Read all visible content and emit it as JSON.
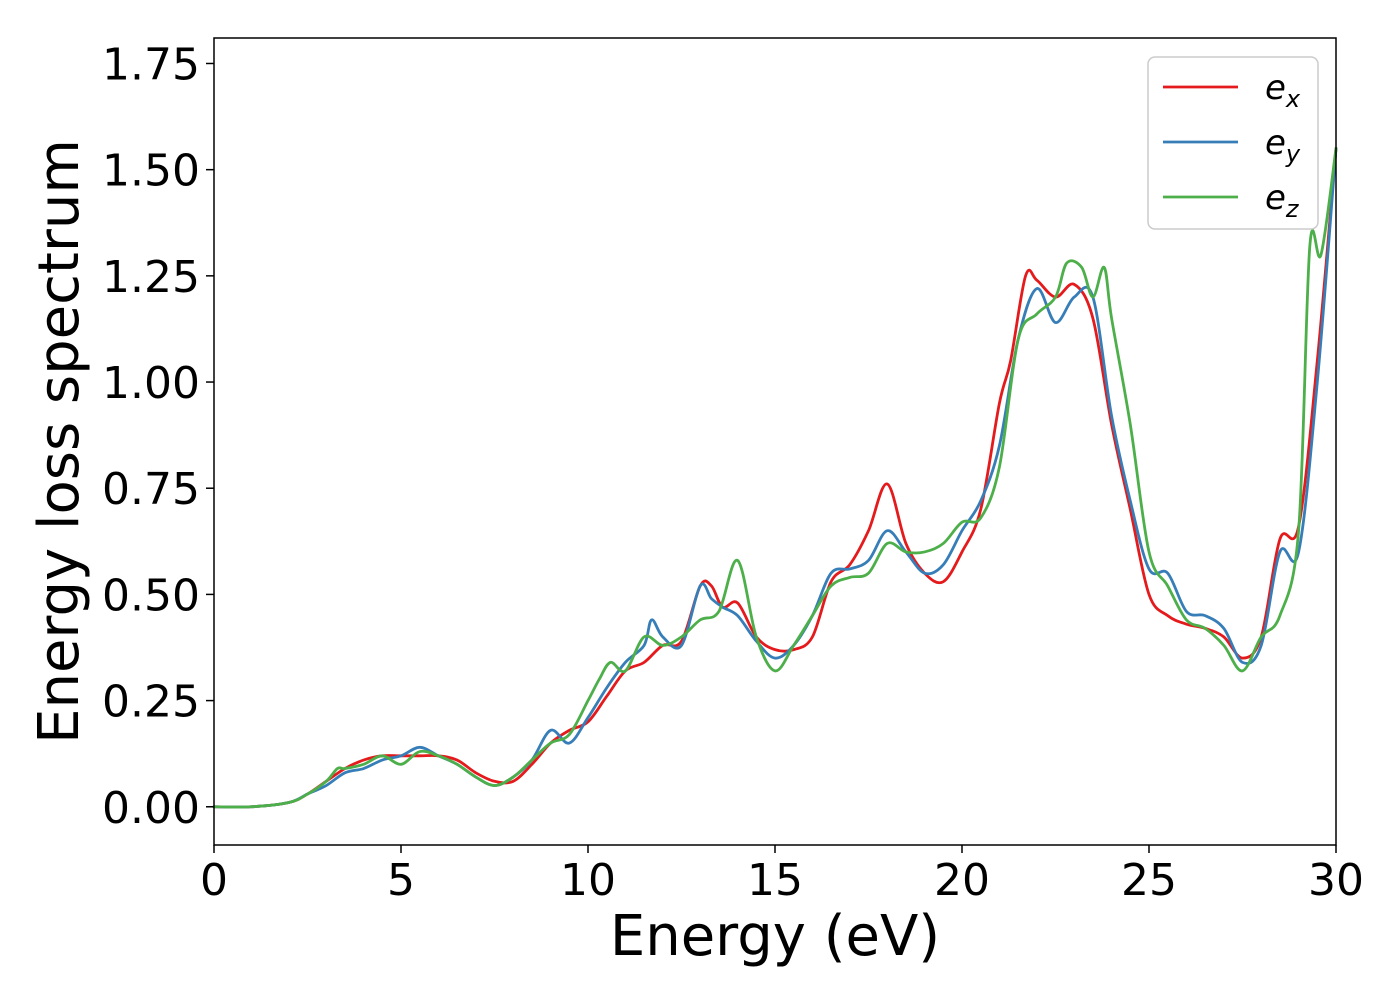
{
  "chart_data": {
    "type": "line",
    "title": "",
    "xlabel": "Energy (eV)",
    "ylabel": "Energy loss spectrum",
    "xlim": [
      0,
      30
    ],
    "ylim": [
      -0.09,
      1.81
    ],
    "xticks": [
      0,
      5,
      10,
      15,
      20,
      25,
      30
    ],
    "xtick_labels": [
      "0",
      "5",
      "10",
      "15",
      "20",
      "25",
      "30"
    ],
    "yticks": [
      0.0,
      0.25,
      0.5,
      0.75,
      1.0,
      1.25,
      1.5,
      1.75
    ],
    "ytick_labels": [
      "0.00",
      "0.25",
      "0.50",
      "0.75",
      "1.00",
      "1.25",
      "1.50",
      "1.75"
    ],
    "grid": false,
    "legend_position": "top-right",
    "series": [
      {
        "name": "e_x",
        "legend_base": "e",
        "legend_sub": "x",
        "color": "#e41a1c",
        "x": [
          0,
          1,
          2,
          2.5,
          3,
          3.5,
          4,
          4.5,
          5,
          5.5,
          6,
          6.5,
          7,
          7.5,
          8,
          8.5,
          9,
          9.5,
          10,
          10.5,
          11,
          11.5,
          12,
          12.5,
          13,
          13.3,
          13.6,
          14,
          14.5,
          15,
          15.5,
          16,
          16.5,
          17,
          17.5,
          18,
          18.5,
          19,
          19.5,
          20,
          20.5,
          21,
          21.3,
          21.7,
          22,
          22.5,
          23,
          23.5,
          24,
          24.5,
          25,
          25.5,
          26,
          26.5,
          27,
          27.5,
          28,
          28.5,
          29,
          29.5,
          30
        ],
        "y": [
          0,
          0,
          0.01,
          0.03,
          0.06,
          0.09,
          0.11,
          0.12,
          0.12,
          0.12,
          0.12,
          0.11,
          0.08,
          0.06,
          0.06,
          0.1,
          0.15,
          0.18,
          0.2,
          0.26,
          0.32,
          0.34,
          0.38,
          0.39,
          0.52,
          0.52,
          0.47,
          0.48,
          0.4,
          0.37,
          0.37,
          0.4,
          0.53,
          0.57,
          0.65,
          0.76,
          0.62,
          0.55,
          0.53,
          0.6,
          0.7,
          0.95,
          1.05,
          1.25,
          1.24,
          1.2,
          1.23,
          1.15,
          0.9,
          0.7,
          0.5,
          0.45,
          0.43,
          0.42,
          0.4,
          0.35,
          0.4,
          0.63,
          0.66,
          1.05,
          1.55
        ]
      },
      {
        "name": "e_y",
        "legend_base": "e",
        "legend_sub": "y",
        "color": "#377eb8",
        "x": [
          0,
          1,
          2,
          2.5,
          3,
          3.5,
          4,
          4.5,
          5,
          5.5,
          6,
          6.5,
          7,
          7.5,
          8,
          8.5,
          9,
          9.5,
          10,
          10.5,
          11,
          11.5,
          11.7,
          12,
          12.5,
          13,
          13.3,
          13.6,
          14,
          14.5,
          15,
          15.5,
          16,
          16.5,
          17,
          17.5,
          18,
          18.5,
          19,
          19.5,
          20,
          20.5,
          21,
          21.5,
          22,
          22.5,
          23,
          23.5,
          24,
          24.5,
          25,
          25.5,
          26,
          26.5,
          27,
          27.5,
          28,
          28.5,
          29,
          29.5,
          30
        ],
        "y": [
          0,
          0,
          0.01,
          0.03,
          0.05,
          0.08,
          0.09,
          0.11,
          0.12,
          0.14,
          0.12,
          0.1,
          0.07,
          0.05,
          0.07,
          0.11,
          0.18,
          0.15,
          0.21,
          0.28,
          0.34,
          0.38,
          0.44,
          0.4,
          0.38,
          0.52,
          0.49,
          0.47,
          0.45,
          0.39,
          0.35,
          0.38,
          0.45,
          0.55,
          0.56,
          0.58,
          0.65,
          0.6,
          0.55,
          0.57,
          0.65,
          0.72,
          0.85,
          1.1,
          1.22,
          1.14,
          1.2,
          1.2,
          0.92,
          0.72,
          0.56,
          0.55,
          0.46,
          0.45,
          0.42,
          0.34,
          0.38,
          0.6,
          0.6,
          1.0,
          1.55
        ]
      },
      {
        "name": "e_z",
        "legend_base": "e",
        "legend_sub": "z",
        "color": "#4daf4a",
        "x": [
          0,
          1,
          2,
          2.5,
          3,
          3.3,
          3.5,
          4,
          4.5,
          5,
          5.5,
          6,
          6.5,
          7,
          7.5,
          8,
          8.5,
          9,
          9.5,
          10,
          10.3,
          10.6,
          11,
          11.5,
          12,
          12.5,
          13,
          13.5,
          14,
          14.5,
          15,
          15.5,
          16,
          16.5,
          17,
          17.5,
          18,
          18.5,
          19,
          19.5,
          20,
          20.5,
          21,
          21.5,
          22,
          22.5,
          22.8,
          23.2,
          23.5,
          23.8,
          24,
          24.5,
          25,
          25.5,
          26,
          26.5,
          27,
          27.5,
          28,
          28.5,
          29,
          29.3,
          29.6,
          30
        ],
        "y": [
          0,
          0,
          0.01,
          0.03,
          0.06,
          0.09,
          0.09,
          0.1,
          0.12,
          0.1,
          0.13,
          0.12,
          0.1,
          0.07,
          0.05,
          0.07,
          0.11,
          0.15,
          0.17,
          0.25,
          0.3,
          0.34,
          0.32,
          0.4,
          0.38,
          0.4,
          0.44,
          0.46,
          0.58,
          0.4,
          0.32,
          0.38,
          0.45,
          0.52,
          0.54,
          0.55,
          0.62,
          0.6,
          0.6,
          0.62,
          0.67,
          0.68,
          0.8,
          1.1,
          1.16,
          1.2,
          1.28,
          1.27,
          1.2,
          1.27,
          1.15,
          0.9,
          0.6,
          0.52,
          0.44,
          0.42,
          0.38,
          0.32,
          0.4,
          0.45,
          0.65,
          1.32,
          1.3,
          1.55
        ]
      }
    ]
  }
}
